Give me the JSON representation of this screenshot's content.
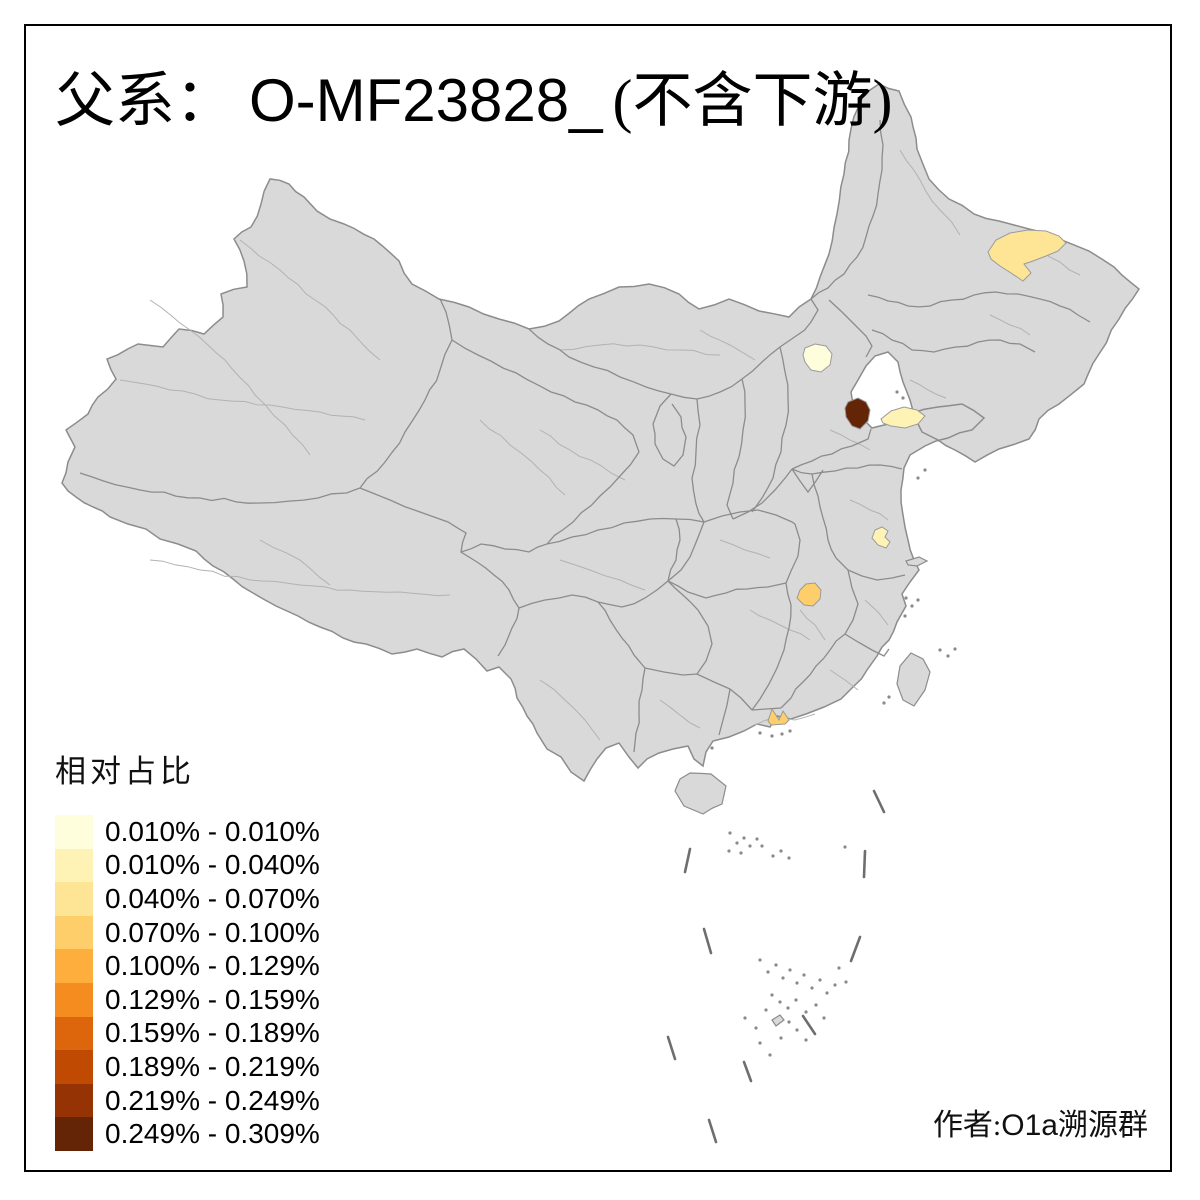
{
  "title": {
    "zh_prefix": "父系：",
    "code": "O-MF23828_",
    "suffix": "(不含下游)"
  },
  "legend": {
    "title": "相对占比",
    "entries": [
      {
        "range": "0.010% - 0.010%",
        "color": "#FFFEDC"
      },
      {
        "range": "0.010% - 0.040%",
        "color": "#FEF3B5"
      },
      {
        "range": "0.040% - 0.070%",
        "color": "#FDE595"
      },
      {
        "range": "0.070% - 0.100%",
        "color": "#FDCE6A"
      },
      {
        "range": "0.100% - 0.129%",
        "color": "#FDAE3C"
      },
      {
        "range": "0.129% - 0.159%",
        "color": "#F58C20"
      },
      {
        "range": "0.159% - 0.189%",
        "color": "#DD660D"
      },
      {
        "range": "0.189% - 0.219%",
        "color": "#C04A02"
      },
      {
        "range": "0.219% - 0.249%",
        "color": "#953305"
      },
      {
        "range": "0.249% - 0.309%",
        "color": "#632506"
      }
    ]
  },
  "credit": {
    "prefix": "作者:",
    "latin": "O1a",
    "suffix": "溯源群"
  },
  "map": {
    "land_color": "#D9D9D9",
    "province_border_color": "#8C8C8C",
    "prefecture_border_color": "#B2B2B2",
    "dash_line_color": "#6E6E6E",
    "islet_color": "#8A8A8A",
    "frame_color": "#000000",
    "sea_color": "#FFFFFF",
    "regions": [
      {
        "id": "region-northeast",
        "range": "0.040% - 0.070%",
        "color": "#FDE595"
      },
      {
        "id": "region-beijing-area",
        "range": "0.010% - 0.010%",
        "color": "#FFFEDC"
      },
      {
        "id": "region-north-coast-dark",
        "range": "0.249% - 0.309%",
        "color": "#632506"
      },
      {
        "id": "region-shandong",
        "range": "0.010% - 0.040%",
        "color": "#FEF3B5"
      },
      {
        "id": "region-jiangsu",
        "range": "0.010% - 0.040%",
        "color": "#FEF3B5"
      },
      {
        "id": "region-hunan",
        "range": "0.070% - 0.100%",
        "color": "#FDCE6A"
      },
      {
        "id": "region-guangdong-coast",
        "range": "0.070% - 0.100%",
        "color": "#FDCE6A"
      }
    ]
  },
  "chart_data": {
    "type": "choropleth",
    "title": "父系： O-MF23828_ (不含下游)",
    "legend_title": "相对占比",
    "unit": "%",
    "bins": [
      "0.010% - 0.010%",
      "0.010% - 0.040%",
      "0.040% - 0.070%",
      "0.070% - 0.100%",
      "0.100% - 0.129%",
      "0.129% - 0.159%",
      "0.159% - 0.189%",
      "0.189% - 0.219%",
      "0.219% - 0.249%",
      "0.249% - 0.309%"
    ],
    "bin_colors": [
      "#FFFEDC",
      "#FEF3B5",
      "#FDE595",
      "#FDCE6A",
      "#FDAE3C",
      "#F58C20",
      "#DD660D",
      "#C04A02",
      "#953305",
      "#632506"
    ],
    "highlighted_regions": [
      {
        "location": "northeast (Heilongjiang area)",
        "bin": "0.040% - 0.070%"
      },
      {
        "location": "Beijing area",
        "bin": "0.010% - 0.010%"
      },
      {
        "location": "north coast near Tianjin",
        "bin": "0.249% - 0.309%"
      },
      {
        "location": "Shandong north",
        "bin": "0.010% - 0.040%"
      },
      {
        "location": "central Jiangsu",
        "bin": "0.010% - 0.040%"
      },
      {
        "location": "Hunan",
        "bin": "0.070% - 0.100%"
      },
      {
        "location": "Guangdong coast",
        "bin": "0.070% - 0.100%"
      }
    ],
    "credit": "作者:O1a溯源群"
  }
}
